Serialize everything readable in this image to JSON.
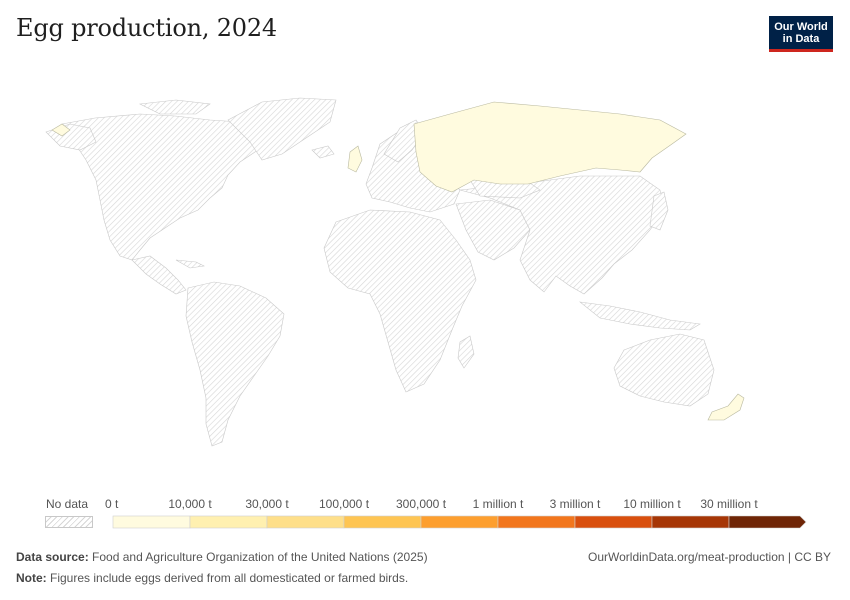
{
  "title": "Egg production, 2024",
  "logo": {
    "line1": "Our World",
    "line2": "in Data"
  },
  "legend": {
    "no_data_label": "No data",
    "bins": [
      {
        "label": "0 t",
        "color": "#fffbdf"
      },
      {
        "label": "10,000 t",
        "color": "#fff0b0"
      },
      {
        "label": "30,000 t",
        "color": "#fedf8a"
      },
      {
        "label": "100,000 t",
        "color": "#fec553"
      },
      {
        "label": "300,000 t",
        "color": "#fd9f2f"
      },
      {
        "label": "1 million t",
        "color": "#f2761d"
      },
      {
        "label": "3 million t",
        "color": "#d94f0e"
      },
      {
        "label": "10 million t",
        "color": "#a63606"
      },
      {
        "label": "30 million t",
        "color": "#6f2506"
      }
    ]
  },
  "countries_with_data": [
    {
      "name": "Russia",
      "color": "#fffbdf"
    },
    {
      "name": "Greenland",
      "color": "#fffbdf"
    },
    {
      "name": "United Kingdom",
      "color": "#fffbdf"
    },
    {
      "name": "New Zealand",
      "color": "#fffbdf"
    }
  ],
  "footer": {
    "source_label": "Data source:",
    "source_text": "Food and Agriculture Organization of the United Nations (2025)",
    "note_label": "Note:",
    "note_text": "Figures include eggs derived from all domesticated or farmed birds.",
    "url": "OurWorldinData.org/meat-production | CC BY"
  }
}
